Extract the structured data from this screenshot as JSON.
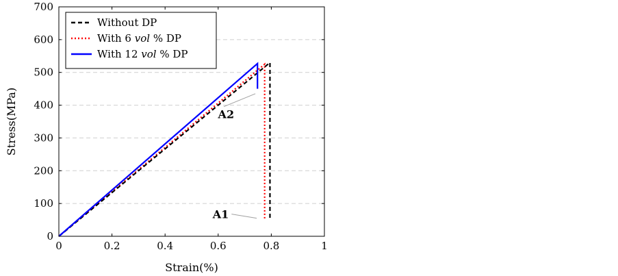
{
  "chart_data": {
    "type": "line",
    "xlabel": "Strain(%)",
    "ylabel": "Stress(MPa)",
    "xlim": [
      0,
      1
    ],
    "ylim": [
      0,
      700
    ],
    "xticks": [
      "0",
      "0.2",
      "0.4",
      "0.6",
      "0.8",
      "1"
    ],
    "yticks": [
      "0",
      "100",
      "200",
      "300",
      "400",
      "500",
      "600",
      "700"
    ],
    "grid": "horizontal-dashed",
    "legend_position": "top-left",
    "series": [
      {
        "name": "Without DP",
        "legend_prefix": "Without DP",
        "legend_italic": "",
        "legend_suffix": "",
        "color": "#000000",
        "style": "dashed",
        "x": [
          0,
          0.795,
          0.795
        ],
        "y": [
          0,
          530,
          50
        ]
      },
      {
        "name": "With 6 vol % DP",
        "legend_prefix": "With 6 ",
        "legend_italic": "vol",
        "legend_suffix": " % DP",
        "color": "#ff0000",
        "style": "dotted",
        "x": [
          0,
          0.775,
          0.775
        ],
        "y": [
          0,
          525,
          50
        ]
      },
      {
        "name": "With 12 vol % DP",
        "legend_prefix": "With 12 ",
        "legend_italic": "vol",
        "legend_suffix": " % DP",
        "color": "#0000ff",
        "style": "solid",
        "x": [
          0,
          0.748,
          0.748
        ],
        "y": [
          0,
          527,
          450
        ]
      }
    ],
    "annotations": [
      {
        "label": "A2",
        "text_x": 0.66,
        "text_y": 360,
        "target_x": 0.74,
        "target_y": 435
      },
      {
        "label": "A1",
        "text_x": 0.64,
        "text_y": 55,
        "target_x": 0.745,
        "target_y": 55
      }
    ]
  }
}
